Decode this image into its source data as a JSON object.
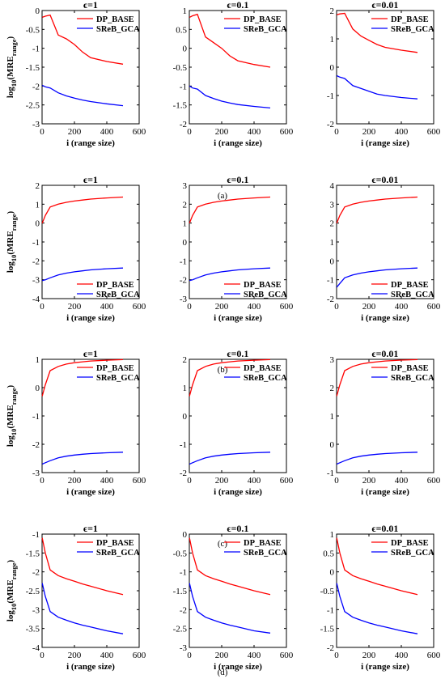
{
  "figure": {
    "row_labels": [
      "(a)",
      "(b)",
      "(c)",
      "(d)"
    ],
    "legend": [
      {
        "name": "DP_BASE",
        "color": "#ff0000"
      },
      {
        "name": "SReB_GCA",
        "color": "#0000ff"
      }
    ]
  },
  "chart_data": [
    {
      "row": "a",
      "type": "line",
      "title": "ϵ=1",
      "xlabel": "i (range size)",
      "ylabel_main": "log",
      "ylabel_sub": "10",
      "ylabel_paren": "(MRE",
      "ylabel_range": "range",
      "ylabel_close": ")",
      "xlim": [
        0,
        600
      ],
      "ylim": [
        -3,
        0
      ],
      "xticks": [
        0,
        200,
        400,
        600
      ],
      "xtick_labels": [
        "0",
        "200",
        "400",
        "600"
      ],
      "yticks": [
        -3,
        -2.5,
        -2,
        -1.5,
        -1,
        -0.5,
        0
      ],
      "ytick_labels": [
        "-3",
        "-2.5",
        "-2",
        "-1.5",
        "-1",
        "-0.5",
        "0"
      ],
      "legend_position": "top-right",
      "x": [
        1,
        20,
        50,
        100,
        150,
        200,
        250,
        300,
        400,
        500
      ],
      "series": [
        {
          "name": "DP_BASE",
          "values": [
            -0.18,
            -0.15,
            -0.12,
            -0.65,
            -0.75,
            -0.9,
            -1.1,
            -1.25,
            -1.35,
            -1.42
          ]
        },
        {
          "name": "SReB_GCA",
          "values": [
            -1.98,
            -2.02,
            -2.05,
            -2.18,
            -2.26,
            -2.32,
            -2.37,
            -2.41,
            -2.47,
            -2.52
          ]
        }
      ]
    },
    {
      "row": "a",
      "type": "line",
      "title": "ϵ=0.1",
      "xlabel": "i (range size)",
      "ylabel_main": "",
      "ylabel_sub": "",
      "ylabel_paren": "",
      "ylabel_range": "",
      "ylabel_close": "",
      "xlim": [
        0,
        600
      ],
      "ylim": [
        -2,
        1
      ],
      "xticks": [
        0,
        200,
        400,
        600
      ],
      "xtick_labels": [
        "0",
        "200",
        "400",
        "600"
      ],
      "yticks": [
        -2,
        -1.5,
        -1,
        -0.5,
        0,
        0.5,
        1
      ],
      "ytick_labels": [
        "-2",
        "-1.5",
        "-1",
        "-0.5",
        "0",
        "0.5",
        "1"
      ],
      "legend_position": "top-right",
      "x": [
        1,
        20,
        50,
        100,
        150,
        200,
        250,
        300,
        400,
        500
      ],
      "series": [
        {
          "name": "DP_BASE",
          "values": [
            0.82,
            0.86,
            0.9,
            0.3,
            0.15,
            0.0,
            -0.2,
            -0.33,
            -0.43,
            -0.5
          ]
        },
        {
          "name": "SReB_GCA",
          "values": [
            -1.0,
            -1.05,
            -1.08,
            -1.25,
            -1.33,
            -1.4,
            -1.45,
            -1.49,
            -1.54,
            -1.58
          ]
        }
      ]
    },
    {
      "row": "a",
      "type": "line",
      "title": "ϵ=0.01",
      "xlabel": "i (range size)",
      "ylabel_main": "",
      "ylabel_sub": "",
      "ylabel_paren": "",
      "ylabel_range": "",
      "ylabel_close": "",
      "xlim": [
        0,
        600
      ],
      "ylim": [
        -2,
        2
      ],
      "xticks": [
        0,
        200,
        400,
        600
      ],
      "xtick_labels": [
        "0",
        "200",
        "400",
        "600"
      ],
      "yticks": [
        -2,
        -1,
        0,
        1,
        2
      ],
      "ytick_labels": [
        "-2",
        "-1",
        "0",
        "1",
        "2"
      ],
      "legend_position": "top-right",
      "x": [
        1,
        20,
        50,
        100,
        150,
        200,
        250,
        300,
        400,
        500
      ],
      "series": [
        {
          "name": "DP_BASE",
          "values": [
            1.85,
            1.88,
            1.9,
            1.35,
            1.1,
            0.95,
            0.8,
            0.7,
            0.6,
            0.52
          ]
        },
        {
          "name": "SReB_GCA",
          "values": [
            -0.3,
            -0.35,
            -0.4,
            -0.65,
            -0.75,
            -0.85,
            -0.95,
            -1.0,
            -1.07,
            -1.12
          ]
        }
      ]
    },
    {
      "row": "b",
      "type": "line",
      "title": "ϵ=1",
      "xlabel": "i (range size)",
      "ylabel_main": "log",
      "ylabel_sub": "10",
      "ylabel_paren": "(MRE",
      "ylabel_range": "range",
      "ylabel_close": ")",
      "xlim": [
        0,
        600
      ],
      "ylim": [
        -4,
        2
      ],
      "xticks": [
        0,
        200,
        400,
        600
      ],
      "xtick_labels": [
        "0",
        "200",
        "400",
        "600"
      ],
      "yticks": [
        -4,
        -3,
        -2,
        -1,
        0,
        1,
        2
      ],
      "ytick_labels": [
        "-4",
        "-3",
        "-2",
        "-1",
        "0",
        "1",
        "2"
      ],
      "legend_position": "bottom-right",
      "x": [
        1,
        20,
        50,
        100,
        150,
        200,
        250,
        300,
        400,
        500
      ],
      "series": [
        {
          "name": "DP_BASE",
          "values": [
            0.0,
            0.4,
            0.85,
            1.0,
            1.1,
            1.17,
            1.22,
            1.27,
            1.33,
            1.38
          ]
        },
        {
          "name": "SReB_GCA",
          "values": [
            -3.05,
            -3.0,
            -2.9,
            -2.75,
            -2.65,
            -2.58,
            -2.53,
            -2.48,
            -2.42,
            -2.38
          ]
        }
      ]
    },
    {
      "row": "b",
      "type": "line",
      "title": "ϵ=0.1",
      "xlabel": "i (range size)",
      "ylabel_main": "",
      "ylabel_sub": "",
      "ylabel_paren": "",
      "ylabel_range": "",
      "ylabel_close": "",
      "xlim": [
        0,
        600
      ],
      "ylim": [
        -3,
        3
      ],
      "xticks": [
        0,
        200,
        400,
        600
      ],
      "xtick_labels": [
        "0",
        "200",
        "400",
        "600"
      ],
      "yticks": [
        -3,
        -2,
        -1,
        0,
        1,
        2,
        3
      ],
      "ytick_labels": [
        "-3",
        "-2",
        "-1",
        "0",
        "1",
        "2",
        "3"
      ],
      "legend_position": "bottom-right",
      "x": [
        1,
        20,
        50,
        100,
        150,
        200,
        250,
        300,
        400,
        500
      ],
      "series": [
        {
          "name": "DP_BASE",
          "values": [
            1.0,
            1.4,
            1.85,
            2.0,
            2.1,
            2.17,
            2.22,
            2.27,
            2.33,
            2.38
          ]
        },
        {
          "name": "SReB_GCA",
          "values": [
            -2.05,
            -2.0,
            -1.9,
            -1.75,
            -1.65,
            -1.58,
            -1.53,
            -1.48,
            -1.42,
            -1.38
          ]
        }
      ]
    },
    {
      "row": "b",
      "type": "line",
      "title": "ϵ=0.01",
      "xlabel": "i (range size)",
      "ylabel_main": "",
      "ylabel_sub": "",
      "ylabel_paren": "",
      "ylabel_range": "",
      "ylabel_close": "",
      "xlim": [
        0,
        600
      ],
      "ylim": [
        -2,
        4
      ],
      "xticks": [
        0,
        200,
        400,
        600
      ],
      "xtick_labels": [
        "0",
        "200",
        "400",
        "600"
      ],
      "yticks": [
        -2,
        -1,
        0,
        1,
        2,
        3,
        4
      ],
      "ytick_labels": [
        "-2",
        "-1",
        "0",
        "1",
        "2",
        "3",
        "4"
      ],
      "legend_position": "bottom-right",
      "x": [
        1,
        20,
        50,
        100,
        150,
        200,
        250,
        300,
        400,
        500
      ],
      "series": [
        {
          "name": "DP_BASE",
          "values": [
            2.0,
            2.4,
            2.85,
            3.0,
            3.1,
            3.17,
            3.22,
            3.27,
            3.33,
            3.38
          ]
        },
        {
          "name": "SReB_GCA",
          "values": [
            -1.4,
            -1.2,
            -0.9,
            -0.75,
            -0.65,
            -0.58,
            -0.53,
            -0.48,
            -0.42,
            -0.38
          ]
        }
      ]
    },
    {
      "row": "c",
      "type": "line",
      "title": "ϵ=1",
      "xlabel": "i (range size)",
      "ylabel_main": "log",
      "ylabel_sub": "10",
      "ylabel_paren": "(MRE",
      "ylabel_range": "range",
      "ylabel_close": ")",
      "xlim": [
        0,
        600
      ],
      "ylim": [
        -3,
        1
      ],
      "xticks": [
        0,
        200,
        400,
        600
      ],
      "xtick_labels": [
        "0",
        "200",
        "400",
        "600"
      ],
      "yticks": [
        -3,
        -2,
        -1,
        0,
        1
      ],
      "ytick_labels": [
        "-3",
        "-2",
        "-1",
        "0",
        "1"
      ],
      "legend_position": "top-right",
      "x": [
        1,
        20,
        50,
        100,
        150,
        200,
        250,
        300,
        400,
        500
      ],
      "series": [
        {
          "name": "DP_BASE",
          "values": [
            -0.3,
            0.1,
            0.6,
            0.75,
            0.83,
            0.88,
            0.91,
            0.94,
            0.97,
            0.99
          ]
        },
        {
          "name": "SReB_GCA",
          "values": [
            -2.7,
            -2.65,
            -2.58,
            -2.48,
            -2.42,
            -2.38,
            -2.35,
            -2.33,
            -2.3,
            -2.28
          ]
        }
      ]
    },
    {
      "row": "c",
      "type": "line",
      "title": "ϵ=0.1",
      "xlabel": "i (range size)",
      "ylabel_main": "",
      "ylabel_sub": "",
      "ylabel_paren": "",
      "ylabel_range": "",
      "ylabel_close": "",
      "xlim": [
        0,
        600
      ],
      "ylim": [
        -2,
        2
      ],
      "xticks": [
        0,
        200,
        400,
        600
      ],
      "xtick_labels": [
        "0",
        "200",
        "400",
        "600"
      ],
      "yticks": [
        -2,
        -1,
        0,
        1,
        2
      ],
      "ytick_labels": [
        "-2",
        "-1",
        "0",
        "1",
        "2"
      ],
      "legend_position": "top-right",
      "x": [
        1,
        20,
        50,
        100,
        150,
        200,
        250,
        300,
        400,
        500
      ],
      "series": [
        {
          "name": "DP_BASE",
          "values": [
            0.7,
            1.1,
            1.6,
            1.75,
            1.83,
            1.88,
            1.91,
            1.94,
            1.97,
            1.99
          ]
        },
        {
          "name": "SReB_GCA",
          "values": [
            -1.7,
            -1.65,
            -1.58,
            -1.48,
            -1.42,
            -1.38,
            -1.35,
            -1.33,
            -1.3,
            -1.28
          ]
        }
      ]
    },
    {
      "row": "c",
      "type": "line",
      "title": "ϵ=0.01",
      "xlabel": "i (range size)",
      "ylabel_main": "",
      "ylabel_sub": "",
      "ylabel_paren": "",
      "ylabel_range": "",
      "ylabel_close": "",
      "xlim": [
        0,
        600
      ],
      "ylim": [
        -1,
        3
      ],
      "xticks": [
        0,
        200,
        400,
        600
      ],
      "xtick_labels": [
        "0",
        "200",
        "400",
        "600"
      ],
      "yticks": [
        -1,
        0,
        1,
        2,
        3
      ],
      "ytick_labels": [
        "-1",
        "0",
        "1",
        "2",
        "3"
      ],
      "legend_position": "top-right",
      "x": [
        1,
        20,
        50,
        100,
        150,
        200,
        250,
        300,
        400,
        500
      ],
      "series": [
        {
          "name": "DP_BASE",
          "values": [
            1.7,
            2.1,
            2.6,
            2.75,
            2.83,
            2.88,
            2.91,
            2.94,
            2.97,
            2.99
          ]
        },
        {
          "name": "SReB_GCA",
          "values": [
            -0.7,
            -0.65,
            -0.58,
            -0.48,
            -0.42,
            -0.38,
            -0.35,
            -0.33,
            -0.3,
            -0.28
          ]
        }
      ]
    },
    {
      "row": "d",
      "type": "line",
      "title": "ϵ=1",
      "xlabel": "i (range size)",
      "ylabel_main": "log",
      "ylabel_sub": "10",
      "ylabel_paren": "(MRE",
      "ylabel_range": "range",
      "ylabel_close": ")",
      "xlim": [
        0,
        600
      ],
      "ylim": [
        -4,
        -1
      ],
      "xticks": [
        0,
        200,
        400,
        600
      ],
      "xtick_labels": [
        "0",
        "200",
        "400",
        "600"
      ],
      "yticks": [
        -4,
        -3.5,
        -3,
        -2.5,
        -2,
        -1.5,
        -1
      ],
      "ytick_labels": [
        "-4",
        "-3.5",
        "-3",
        "-2.5",
        "-2",
        "-1.5",
        "-1"
      ],
      "legend_position": "top-right",
      "x": [
        1,
        20,
        50,
        100,
        150,
        200,
        250,
        300,
        400,
        500
      ],
      "series": [
        {
          "name": "DP_BASE",
          "values": [
            -1.1,
            -1.5,
            -1.95,
            -2.1,
            -2.18,
            -2.25,
            -2.32,
            -2.38,
            -2.5,
            -2.6
          ]
        },
        {
          "name": "SReB_GCA",
          "values": [
            -2.3,
            -2.65,
            -3.05,
            -3.2,
            -3.28,
            -3.35,
            -3.41,
            -3.46,
            -3.56,
            -3.64
          ]
        }
      ]
    },
    {
      "row": "d",
      "type": "line",
      "title": "ϵ=0.1",
      "xlabel": "i (range size)",
      "ylabel_main": "",
      "ylabel_sub": "",
      "ylabel_paren": "",
      "ylabel_range": "",
      "ylabel_close": "",
      "xlim": [
        0,
        600
      ],
      "ylim": [
        -3,
        0
      ],
      "xticks": [
        0,
        200,
        400,
        600
      ],
      "xtick_labels": [
        "0",
        "200",
        "400",
        "600"
      ],
      "yticks": [
        -3,
        -2.5,
        -2,
        -1.5,
        -1,
        -0.5,
        0
      ],
      "ytick_labels": [
        "-3",
        "-2.5",
        "-2",
        "-1.5",
        "-1",
        "-0.5",
        "0"
      ],
      "legend_position": "top-right",
      "x": [
        1,
        20,
        50,
        100,
        150,
        200,
        250,
        300,
        400,
        500
      ],
      "series": [
        {
          "name": "DP_BASE",
          "values": [
            -0.1,
            -0.5,
            -0.95,
            -1.1,
            -1.18,
            -1.25,
            -1.32,
            -1.38,
            -1.5,
            -1.6
          ]
        },
        {
          "name": "SReB_GCA",
          "values": [
            -1.3,
            -1.65,
            -2.05,
            -2.2,
            -2.28,
            -2.35,
            -2.41,
            -2.46,
            -2.56,
            -2.62
          ]
        }
      ]
    },
    {
      "row": "d",
      "type": "line",
      "title": "ϵ=0.01",
      "xlabel": "i (range size)",
      "ylabel_main": "",
      "ylabel_sub": "",
      "ylabel_paren": "",
      "ylabel_range": "",
      "ylabel_close": "",
      "xlim": [
        0,
        600
      ],
      "ylim": [
        -2,
        1
      ],
      "xticks": [
        0,
        200,
        400,
        600
      ],
      "xtick_labels": [
        "0",
        "200",
        "400",
        "600"
      ],
      "yticks": [
        -2,
        -1.5,
        -1,
        -0.5,
        0,
        0.5,
        1
      ],
      "ytick_labels": [
        "-2",
        "-1.5",
        "-1",
        "-0.5",
        "0",
        "0.5",
        "1"
      ],
      "legend_position": "top-right",
      "x": [
        1,
        20,
        50,
        100,
        150,
        200,
        250,
        300,
        400,
        500
      ],
      "series": [
        {
          "name": "DP_BASE",
          "values": [
            0.9,
            0.5,
            0.05,
            -0.1,
            -0.18,
            -0.25,
            -0.32,
            -0.38,
            -0.5,
            -0.6
          ]
        },
        {
          "name": "SReB_GCA",
          "values": [
            -0.3,
            -0.65,
            -1.05,
            -1.2,
            -1.28,
            -1.35,
            -1.41,
            -1.46,
            -1.56,
            -1.64
          ]
        }
      ]
    }
  ]
}
